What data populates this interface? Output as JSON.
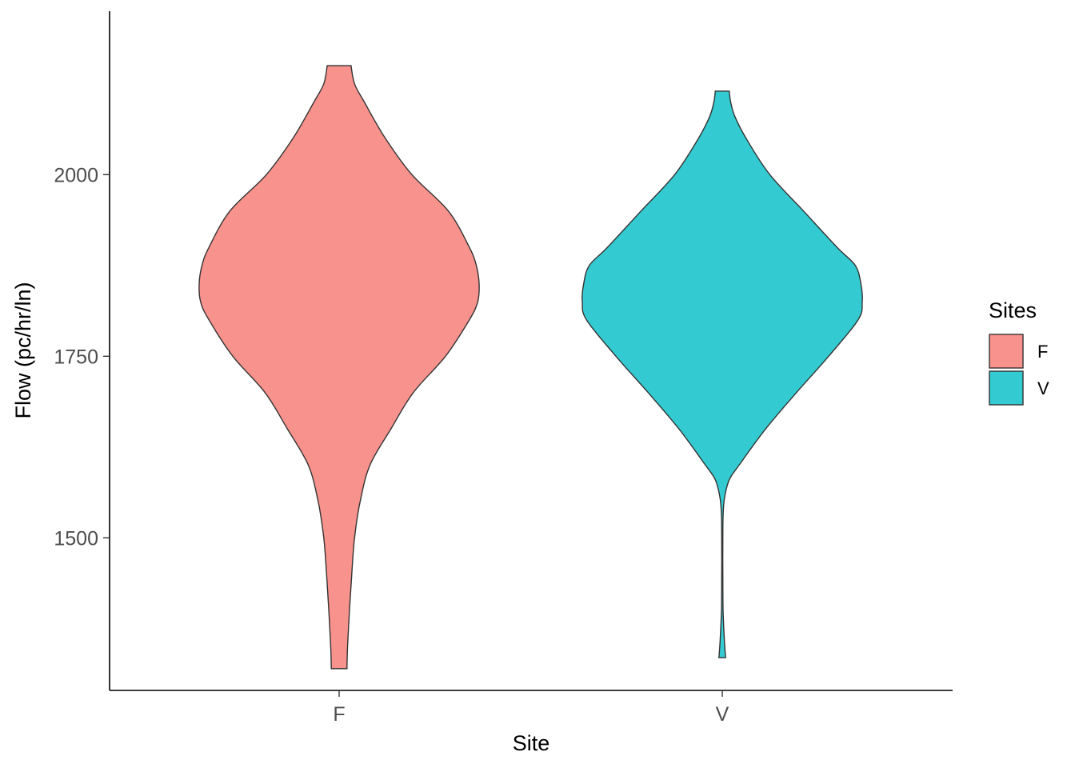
{
  "chart_data": {
    "type": "violin",
    "title": "",
    "xlabel": "Site",
    "ylabel": "Flow (pc/hr/ln)",
    "categories": [
      "F",
      "V"
    ],
    "ylim": [
      1290,
      2225
    ],
    "y_ticks": [
      1500,
      1750,
      2000
    ],
    "grid": false,
    "legend": {
      "title": "Sites",
      "position": "right",
      "entries": [
        {
          "label": "F",
          "color": "#F8928C"
        },
        {
          "label": "V",
          "color": "#33CBD1"
        }
      ]
    },
    "series": [
      {
        "category": "F",
        "color": "#F8928C",
        "y_min": 1320,
        "y_max": 2150,
        "relative_density": [
          {
            "y": 1320,
            "w": 0.056
          },
          {
            "y": 1350,
            "w": 0.06
          },
          {
            "y": 1400,
            "w": 0.074
          },
          {
            "y": 1450,
            "w": 0.09
          },
          {
            "y": 1500,
            "w": 0.11
          },
          {
            "y": 1550,
            "w": 0.15
          },
          {
            "y": 1600,
            "w": 0.22
          },
          {
            "y": 1650,
            "w": 0.37
          },
          {
            "y": 1700,
            "w": 0.53
          },
          {
            "y": 1750,
            "w": 0.76
          },
          {
            "y": 1800,
            "w": 0.93
          },
          {
            "y": 1825,
            "w": 0.99
          },
          {
            "y": 1850,
            "w": 1.0
          },
          {
            "y": 1875,
            "w": 0.98
          },
          {
            "y": 1900,
            "w": 0.93
          },
          {
            "y": 1950,
            "w": 0.78
          },
          {
            "y": 2000,
            "w": 0.52
          },
          {
            "y": 2050,
            "w": 0.33
          },
          {
            "y": 2100,
            "w": 0.18
          },
          {
            "y": 2125,
            "w": 0.11
          },
          {
            "y": 2150,
            "w": 0.085
          }
        ]
      },
      {
        "category": "V",
        "color": "#33CBD1",
        "y_min": 1335,
        "y_max": 2115,
        "relative_density": [
          {
            "y": 1335,
            "w": 0.024
          },
          {
            "y": 1360,
            "w": 0.015
          },
          {
            "y": 1400,
            "w": 0.006
          },
          {
            "y": 1450,
            "w": 0.004
          },
          {
            "y": 1500,
            "w": 0.004
          },
          {
            "y": 1530,
            "w": 0.006
          },
          {
            "y": 1555,
            "w": 0.016
          },
          {
            "y": 1580,
            "w": 0.05
          },
          {
            "y": 1600,
            "w": 0.12
          },
          {
            "y": 1650,
            "w": 0.31
          },
          {
            "y": 1700,
            "w": 0.53
          },
          {
            "y": 1750,
            "w": 0.76
          },
          {
            "y": 1800,
            "w": 0.97
          },
          {
            "y": 1825,
            "w": 1.0
          },
          {
            "y": 1850,
            "w": 0.99
          },
          {
            "y": 1875,
            "w": 0.95
          },
          {
            "y": 1900,
            "w": 0.82
          },
          {
            "y": 1950,
            "w": 0.58
          },
          {
            "y": 2000,
            "w": 0.34
          },
          {
            "y": 2050,
            "w": 0.17
          },
          {
            "y": 2080,
            "w": 0.09
          },
          {
            "y": 2100,
            "w": 0.06
          },
          {
            "y": 2115,
            "w": 0.05
          }
        ]
      }
    ]
  }
}
